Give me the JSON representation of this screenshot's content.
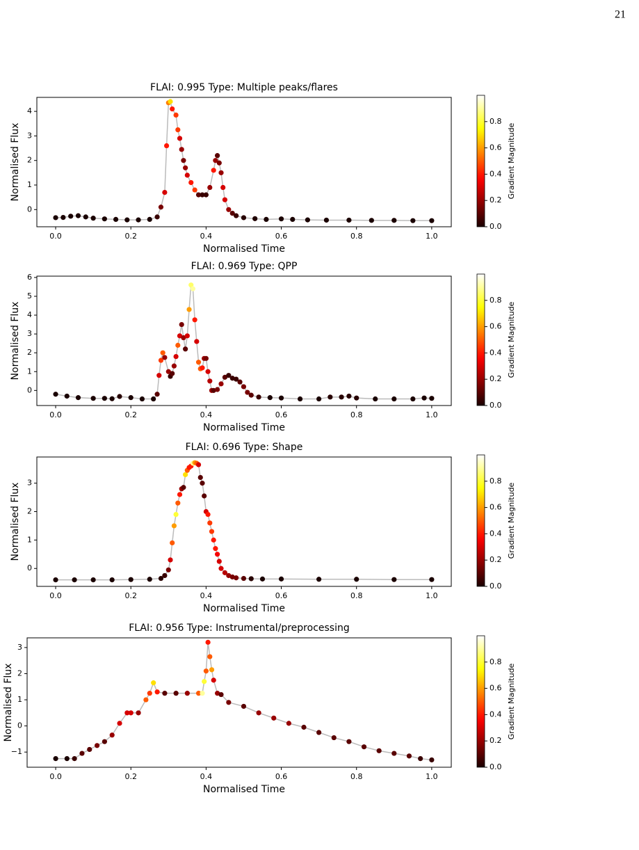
{
  "page_number": "21",
  "chart_data": [
    {
      "type": "scatter",
      "title": "FLAI: 0.995 Type: Multiple peaks/flares",
      "x_label": "Normalised Time",
      "y_label": "Normalised Flux",
      "colorbar_label": "Gradient Magnitude",
      "colormap": "hot",
      "line_color": "#bbbbbb",
      "x": [
        0,
        0.02,
        0.04,
        0.06,
        0.08,
        0.1,
        0.13,
        0.16,
        0.19,
        0.22,
        0.25,
        0.27,
        0.28,
        0.29,
        0.295,
        0.3,
        0.305,
        0.31,
        0.32,
        0.325,
        0.33,
        0.335,
        0.34,
        0.345,
        0.35,
        0.36,
        0.37,
        0.38,
        0.39,
        0.4,
        0.41,
        0.42,
        0.425,
        0.43,
        0.435,
        0.44,
        0.445,
        0.45,
        0.46,
        0.47,
        0.48,
        0.5,
        0.53,
        0.56,
        0.6,
        0.63,
        0.67,
        0.72,
        0.78,
        0.84,
        0.9,
        0.95,
        1.0
      ],
      "values": [
        -0.33,
        -0.32,
        -0.27,
        -0.25,
        -0.3,
        -0.35,
        -0.38,
        -0.4,
        -0.42,
        -0.42,
        -0.4,
        -0.3,
        0.1,
        0.7,
        2.6,
        4.35,
        4.4,
        4.1,
        3.85,
        3.25,
        2.9,
        2.45,
        2.0,
        1.7,
        1.4,
        1.1,
        0.8,
        0.6,
        0.6,
        0.6,
        0.9,
        1.6,
        2.0,
        2.2,
        1.9,
        1.5,
        0.9,
        0.4,
        0.0,
        -0.15,
        -0.25,
        -0.33,
        -0.37,
        -0.4,
        -0.38,
        -0.4,
        -0.42,
        -0.43,
        -0.43,
        -0.44,
        -0.44,
        -0.45,
        -0.45
      ],
      "gradient": [
        0,
        0,
        0,
        0,
        0,
        0,
        0,
        0,
        0,
        0,
        0,
        0.05,
        0.15,
        0.3,
        0.4,
        0.55,
        0.7,
        0.4,
        0.45,
        0.45,
        0.3,
        0.2,
        0.15,
        0.2,
        0.3,
        0.4,
        0.45,
        0.1,
        0.05,
        0.05,
        0.2,
        0.4,
        0.2,
        0.1,
        0.15,
        0.2,
        0.3,
        0.3,
        0.2,
        0.1,
        0.05,
        0.02,
        0.01,
        0,
        0,
        0,
        0,
        0,
        0,
        0,
        0,
        0,
        0
      ],
      "xlim": [
        -0.05,
        1.052
      ],
      "ylim": [
        -0.7,
        4.57
      ],
      "xticks": [
        {
          "value": 0,
          "label": "0.0"
        },
        0.2,
        0.4,
        0.6,
        0.8,
        {
          "value": 1,
          "label": "1.0"
        }
      ],
      "yticks": [
        0,
        1,
        2,
        3,
        4
      ],
      "clim": [
        0,
        1
      ],
      "cticks": [
        {
          "value": 0,
          "label": "0.0"
        },
        0.2,
        0.4,
        0.6,
        0.8
      ]
    },
    {
      "type": "scatter",
      "title": "FLAI: 0.969 Type: QPP",
      "x_label": "Normalised Time",
      "y_label": "Normalised Flux",
      "colorbar_label": "Gradient Magnitude",
      "colormap": "hot",
      "line_color": "#bbbbbb",
      "x": [
        0,
        0.03,
        0.06,
        0.1,
        0.13,
        0.15,
        0.17,
        0.2,
        0.23,
        0.26,
        0.27,
        0.275,
        0.28,
        0.285,
        0.29,
        0.3,
        0.305,
        0.31,
        0.315,
        0.32,
        0.325,
        0.33,
        0.335,
        0.34,
        0.345,
        0.35,
        0.355,
        0.36,
        0.365,
        0.37,
        0.375,
        0.38,
        0.385,
        0.39,
        0.395,
        0.4,
        0.405,
        0.41,
        0.415,
        0.42,
        0.43,
        0.44,
        0.45,
        0.46,
        0.47,
        0.48,
        0.49,
        0.5,
        0.51,
        0.52,
        0.54,
        0.57,
        0.6,
        0.65,
        0.7,
        0.73,
        0.76,
        0.78,
        0.8,
        0.85,
        0.9,
        0.95,
        0.98,
        1.0
      ],
      "values": [
        -0.2,
        -0.3,
        -0.38,
        -0.42,
        -0.42,
        -0.44,
        -0.32,
        -0.38,
        -0.45,
        -0.45,
        -0.2,
        0.8,
        1.6,
        2.0,
        1.75,
        1.0,
        0.75,
        0.9,
        1.3,
        1.8,
        2.4,
        2.9,
        3.5,
        2.8,
        2.2,
        2.9,
        4.3,
        5.6,
        5.4,
        3.75,
        2.6,
        1.5,
        1.15,
        1.2,
        1.7,
        1.7,
        1.0,
        0.5,
        0.0,
        0.0,
        0.05,
        0.35,
        0.7,
        0.8,
        0.65,
        0.6,
        0.45,
        0.2,
        -0.1,
        -0.25,
        -0.35,
        -0.38,
        -0.4,
        -0.45,
        -0.45,
        -0.35,
        -0.35,
        -0.3,
        -0.4,
        -0.45,
        -0.45,
        -0.45,
        -0.4,
        -0.42
      ],
      "gradient": [
        0,
        0,
        0,
        0,
        0,
        0,
        0.02,
        0,
        0,
        0,
        0.1,
        0.3,
        0.45,
        0.5,
        0.2,
        0.2,
        0.05,
        0.1,
        0.2,
        0.3,
        0.5,
        0.3,
        0.15,
        0.2,
        0.1,
        0.3,
        0.6,
        0.85,
        0.9,
        0.4,
        0.3,
        0.5,
        0.5,
        0.4,
        0.2,
        0.15,
        0.3,
        0.25,
        0.2,
        0.1,
        0.15,
        0.2,
        0.1,
        0.05,
        0.05,
        0.05,
        0.1,
        0.15,
        0.15,
        0.1,
        0.05,
        0,
        0,
        0,
        0,
        0.02,
        0.02,
        0.02,
        0.02,
        0,
        0,
        0,
        0,
        0
      ],
      "xlim": [
        -0.05,
        1.052
      ],
      "ylim": [
        -0.8,
        6.07
      ],
      "xticks": [
        {
          "value": 0,
          "label": "0.0"
        },
        0.2,
        0.4,
        0.6,
        0.8,
        {
          "value": 1,
          "label": "1.0"
        }
      ],
      "yticks": [
        0,
        1,
        2,
        3,
        4,
        5,
        6
      ],
      "clim": [
        0,
        1
      ],
      "cticks": [
        {
          "value": 0,
          "label": "0.0"
        },
        0.2,
        0.4,
        0.6,
        0.8
      ]
    },
    {
      "type": "scatter",
      "title": "FLAI: 0.696 Type: Shape",
      "x_label": "Normalised Time",
      "y_label": "Normalised Flux",
      "colorbar_label": "Gradient Magnitude",
      "colormap": "hot",
      "line_color": "#bbbbbb",
      "x": [
        0,
        0.05,
        0.1,
        0.15,
        0.2,
        0.25,
        0.28,
        0.29,
        0.3,
        0.305,
        0.31,
        0.315,
        0.32,
        0.325,
        0.33,
        0.335,
        0.34,
        0.345,
        0.35,
        0.355,
        0.36,
        0.365,
        0.37,
        0.375,
        0.38,
        0.385,
        0.39,
        0.395,
        0.4,
        0.405,
        0.41,
        0.415,
        0.42,
        0.425,
        0.43,
        0.435,
        0.44,
        0.45,
        0.46,
        0.47,
        0.48,
        0.5,
        0.52,
        0.55,
        0.6,
        0.7,
        0.8,
        0.9,
        1.0
      ],
      "values": [
        -0.4,
        -0.4,
        -0.4,
        -0.4,
        -0.39,
        -0.38,
        -0.35,
        -0.25,
        -0.05,
        0.3,
        0.9,
        1.5,
        1.9,
        2.3,
        2.6,
        2.8,
        2.85,
        3.3,
        3.45,
        3.55,
        3.6,
        3.7,
        3.72,
        3.7,
        3.65,
        3.2,
        3.0,
        2.55,
        2.0,
        1.9,
        1.6,
        1.3,
        1.0,
        0.7,
        0.5,
        0.25,
        0.0,
        -0.15,
        -0.25,
        -0.3,
        -0.33,
        -0.35,
        -0.36,
        -0.37,
        -0.37,
        -0.38,
        -0.38,
        -0.39,
        -0.39
      ],
      "gradient": [
        0,
        0,
        0,
        0,
        0,
        0,
        0.02,
        0.05,
        0.15,
        0.3,
        0.5,
        0.6,
        0.8,
        0.5,
        0.4,
        0.2,
        0.1,
        0.7,
        0.5,
        0.4,
        0.4,
        0.9,
        0.6,
        0.5,
        0.3,
        0.1,
        0.1,
        0.1,
        0.3,
        0.4,
        0.45,
        0.45,
        0.4,
        0.4,
        0.35,
        0.3,
        0.3,
        0.25,
        0.2,
        0.15,
        0.15,
        0.1,
        0.02,
        0,
        0,
        0,
        0,
        0,
        0
      ],
      "xlim": [
        -0.05,
        1.052
      ],
      "ylim": [
        -0.63,
        3.92
      ],
      "xticks": [
        {
          "value": 0,
          "label": "0.0"
        },
        0.2,
        0.4,
        0.6,
        0.8,
        {
          "value": 1,
          "label": "1.0"
        }
      ],
      "yticks": [
        0,
        1,
        2,
        3
      ],
      "clim": [
        0,
        1
      ],
      "cticks": [
        {
          "value": 0,
          "label": "0.0"
        },
        0.2,
        0.4,
        0.6,
        0.8
      ]
    },
    {
      "type": "scatter",
      "title": "FLAI: 0.956 Type: Instrumental/preprocessing",
      "x_label": "Normalised Time",
      "y_label": "Normalised Flux",
      "colorbar_label": "Gradient Magnitude",
      "colormap": "hot",
      "line_color": "#bbbbbb",
      "x": [
        0,
        0.03,
        0.05,
        0.07,
        0.09,
        0.11,
        0.13,
        0.15,
        0.17,
        0.19,
        0.2,
        0.22,
        0.24,
        0.25,
        0.26,
        0.27,
        0.29,
        0.32,
        0.35,
        0.38,
        0.39,
        0.395,
        0.4,
        0.405,
        0.41,
        0.415,
        0.42,
        0.43,
        0.44,
        0.46,
        0.5,
        0.54,
        0.58,
        0.62,
        0.66,
        0.7,
        0.74,
        0.78,
        0.82,
        0.86,
        0.9,
        0.94,
        0.97,
        1.0
      ],
      "values": [
        -1.25,
        -1.25,
        -1.25,
        -1.05,
        -0.9,
        -0.75,
        -0.6,
        -0.35,
        0.1,
        0.5,
        0.5,
        0.5,
        1.0,
        1.25,
        1.65,
        1.3,
        1.25,
        1.25,
        1.25,
        1.25,
        1.25,
        1.7,
        2.1,
        3.2,
        2.65,
        2.15,
        1.75,
        1.25,
        1.2,
        0.9,
        0.75,
        0.5,
        0.3,
        0.1,
        -0.05,
        -0.25,
        -0.45,
        -0.6,
        -0.8,
        -0.95,
        -1.05,
        -1.15,
        -1.25,
        -1.3
      ],
      "gradient": [
        0,
        0,
        0.05,
        0.1,
        0.1,
        0.15,
        0.1,
        0.2,
        0.3,
        0.3,
        0.3,
        0.2,
        0.5,
        0.45,
        0.7,
        0.4,
        0.1,
        0.1,
        0.2,
        0.5,
        0.9,
        0.8,
        0.5,
        0.4,
        0.5,
        0.6,
        0.3,
        0.2,
        0.1,
        0.15,
        0.1,
        0.2,
        0.2,
        0.2,
        0.1,
        0.1,
        0.1,
        0.1,
        0.1,
        0.1,
        0.1,
        0.1,
        0.05,
        0.05
      ],
      "xlim": [
        -0.076,
        1.052
      ],
      "ylim": [
        -1.58,
        3.37
      ],
      "xticks": [
        {
          "value": 0,
          "label": "0.0"
        },
        0.2,
        0.4,
        0.6,
        0.8,
        {
          "value": 1,
          "label": "1.0"
        }
      ],
      "yticks": [
        {
          "value": -1,
          "label": "−1"
        },
        0,
        1,
        2,
        3
      ],
      "clim": [
        0,
        1
      ],
      "cticks": [
        {
          "value": 0,
          "label": "0.0"
        },
        0.2,
        0.4,
        0.6,
        0.8
      ]
    }
  ]
}
